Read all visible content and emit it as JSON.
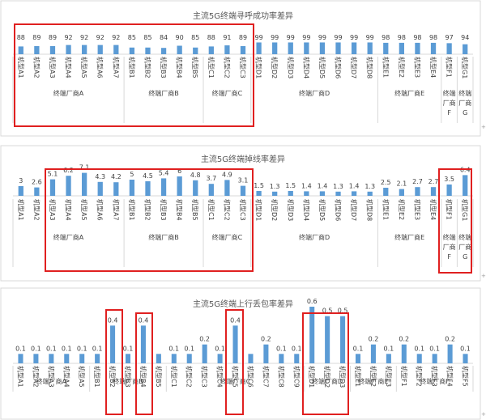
{
  "colors": {
    "bar": "#5b9bd5",
    "highlight": "#e02020",
    "text": "#404040",
    "grid": "#d9d9d9"
  },
  "chart_data": [
    {
      "type": "bar",
      "title": "主流5G终端寻呼成功率差异",
      "ylim": [
        0,
        100
      ],
      "categories": [
        "机型A1",
        "机型A2",
        "机型A3",
        "机型A4",
        "机型A5",
        "机型A6",
        "机型A7",
        "机型B1",
        "机型B2",
        "机型B3",
        "机型B4",
        "机型B5",
        "机型C1",
        "机型C2",
        "机型C3",
        "机型D1",
        "机型D2",
        "机型D3",
        "机型D4",
        "机型D5",
        "机型D6",
        "机型D7",
        "机型D8",
        "机型E1",
        "机型E2",
        "机型E3",
        "机型E4",
        "机型F1",
        "机型G1"
      ],
      "values": [
        88,
        89,
        89,
        92,
        92,
        92,
        92,
        85,
        85,
        84,
        90,
        85,
        88,
        91,
        89,
        99,
        99,
        99,
        99,
        99,
        99,
        99,
        99,
        98,
        98,
        98,
        98,
        97,
        94
      ],
      "data_labels": [
        "88",
        "89",
        "89",
        "92",
        "92",
        "92",
        "92",
        "85",
        "85",
        "84",
        "90",
        "85",
        "88",
        "91",
        "89",
        "99",
        "99",
        "99",
        "99",
        "99",
        "99",
        "99",
        "99",
        "98",
        "98",
        "98",
        "98",
        "97",
        "94"
      ],
      "groups": [
        {
          "label": "终端厂商A",
          "count": 7
        },
        {
          "label": "终端厂商B",
          "count": 5
        },
        {
          "label": "终端厂商C",
          "count": 3
        },
        {
          "label": "终端厂商D",
          "count": 8
        },
        {
          "label": "终端厂商E",
          "count": 4
        },
        {
          "label": "终端厂商F",
          "count": 1
        },
        {
          "label": "终端厂商G",
          "count": 1
        }
      ]
    },
    {
      "type": "bar",
      "title": "主流5G终端掉线率差异",
      "ylim": [
        0,
        7.5
      ],
      "categories": [
        "机型A1",
        "机型A2",
        "机型A3",
        "机型A4",
        "机型A5",
        "机型A6",
        "机型A7",
        "机型B1",
        "机型B2",
        "机型B3",
        "机型B4",
        "机型B5",
        "机型C1",
        "机型C2",
        "机型C3",
        "机型D1",
        "机型D2",
        "机型D3",
        "机型D4",
        "机型D5",
        "机型D6",
        "机型D7",
        "机型D8",
        "机型E1",
        "机型E2",
        "机型E3",
        "机型E4",
        "机型F1",
        "机型G1"
      ],
      "values": [
        3,
        2.6,
        5.1,
        6.2,
        7.1,
        4.3,
        4.2,
        5,
        4.5,
        5.4,
        6,
        4.8,
        3.7,
        4.9,
        3.1,
        1.5,
        1.3,
        1.5,
        1.4,
        1.4,
        1.3,
        1.4,
        1.3,
        2.5,
        2.1,
        2.7,
        2.7,
        3.5,
        6.4
      ],
      "data_labels": [
        "3",
        "2.6",
        "5.1",
        "6.2",
        "7.1",
        "4.3",
        "4.2",
        "5",
        "4.5",
        "5.4",
        "6",
        "4.8",
        "3.7",
        "4.9",
        "3.1",
        "1.5",
        "1.3",
        "1.5",
        "1.4",
        "1.4",
        "1.3",
        "1.4",
        "1.3",
        "2.5",
        "2.1",
        "2.7",
        "2.7",
        "3.5",
        "6.4"
      ],
      "groups": [
        {
          "label": "终端厂商A",
          "count": 7
        },
        {
          "label": "终端厂商B",
          "count": 5
        },
        {
          "label": "终端厂商C",
          "count": 3
        },
        {
          "label": "终端厂商D",
          "count": 8
        },
        {
          "label": "终端厂商E",
          "count": 4
        },
        {
          "label": "终端厂商F",
          "count": 1
        },
        {
          "label": "终端厂商G",
          "count": 1
        }
      ]
    },
    {
      "type": "bar",
      "title": "主流5G终端上行丢包率差异",
      "ylim": [
        0,
        0.6
      ],
      "categories": [
        "机型A1",
        "机型A2",
        "机型A3",
        "机型A4",
        "机型A5",
        "机型B1",
        "机型B2",
        "机型B3",
        "机型B4",
        "机型B5",
        "机型C1",
        "机型C2",
        "机型C3",
        "机型C4",
        "机型C5",
        "机型C6",
        "机型C7",
        "机型C8",
        "机型C9",
        "机型D1",
        "机型D2",
        "机型D3",
        "机型E1",
        "机型E2",
        "机型E3",
        "机型F1",
        "机型F2",
        "机型F3",
        "机型F4",
        "机型F5"
      ],
      "values": [
        0.1,
        0.1,
        0.1,
        0.1,
        0.1,
        0.1,
        0.4,
        0.1,
        0.4,
        0.1,
        0.1,
        0.1,
        0.2,
        0.1,
        0.4,
        0.1,
        0.2,
        0.1,
        0.1,
        0.6,
        0.5,
        0.5,
        0.1,
        0.2,
        0.1,
        0.2,
        0.1,
        0.1,
        0.2,
        0.1
      ],
      "data_labels": [
        "0.1",
        "0.1",
        "0.1",
        "0.1",
        "0.1",
        "0.1",
        "0.4",
        "0.1",
        "0.4",
        "",
        "0.1",
        "0.1",
        "0.2",
        "0.1",
        "0.4",
        "",
        "0.2",
        "0.1",
        "0.1",
        "0.6",
        "0.5",
        "0.5",
        "0.1",
        "0.2",
        "0.1",
        "0.2",
        "0.1",
        "0.1",
        "0.2",
        "0.1"
      ],
      "groups": [
        {
          "label": "终端厂商A",
          "count": 5
        },
        {
          "label": "终端厂商B",
          "count": 5
        },
        {
          "label": "终端厂商C",
          "count": 9
        },
        {
          "label": "终端厂商D",
          "count": 3
        },
        {
          "label": "终端厂商E",
          "count": 3
        },
        {
          "label": "终端厂商F",
          "count": 5
        }
      ]
    }
  ]
}
